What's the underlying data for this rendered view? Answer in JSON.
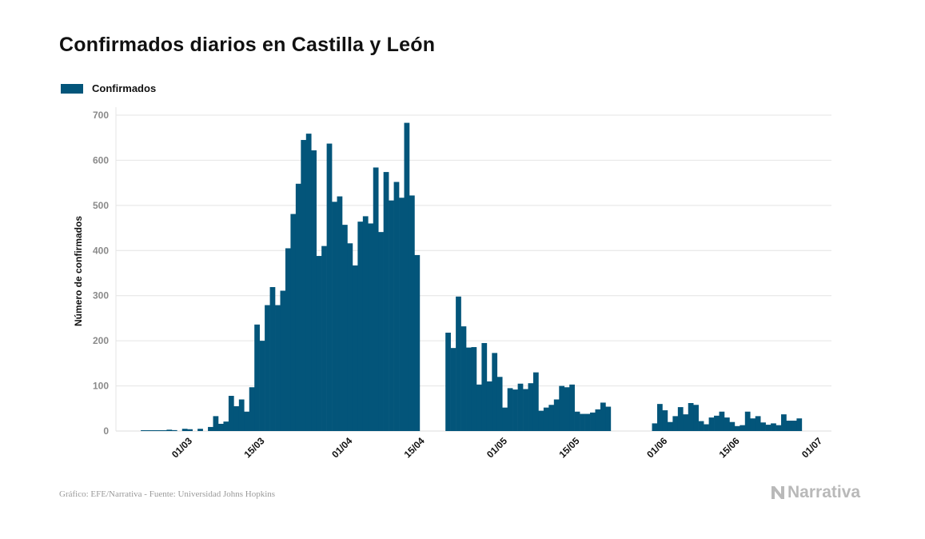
{
  "title": "Confirmados diarios en Castilla y León",
  "source": "Gráfico: EFE/Narrativa - Fuente: Universidad Johns Hopkins",
  "brand": "Narrativa",
  "colors": {
    "bar": "#03557a",
    "grid": "#e4e4e4"
  },
  "chart_data": {
    "type": "bar",
    "title": "Confirmados diarios en Castilla y León",
    "ylabel": "Número de confirmados",
    "xlabel": "",
    "ylim": [
      0,
      700
    ],
    "yticks": [
      0,
      100,
      200,
      300,
      400,
      500,
      600,
      700
    ],
    "xtick_labels": [
      "01/03",
      "15/03",
      "01/04",
      "15/04",
      "01/05",
      "15/05",
      "01/06",
      "15/06",
      "01/07"
    ],
    "legend": {
      "position": "top-left",
      "entries": [
        "Confirmados"
      ]
    },
    "grid": "horizontal",
    "series": [
      {
        "name": "Confirmados",
        "start_date": "2020-02-22",
        "values": [
          1,
          1,
          1,
          1,
          1,
          3,
          2,
          0,
          5,
          4,
          0,
          5,
          0,
          9,
          33,
          16,
          21,
          78,
          55,
          70,
          43,
          97,
          236,
          200,
          279,
          319,
          279,
          311,
          405,
          481,
          548,
          645,
          659,
          622,
          388,
          410,
          637,
          508,
          520,
          457,
          416,
          367,
          464,
          476,
          460,
          584,
          441,
          574,
          511,
          552,
          517,
          683,
          522,
          390,
          0,
          0,
          0,
          0,
          0,
          218,
          184,
          298,
          232,
          185,
          186,
          103,
          195,
          110,
          173,
          120,
          52,
          95,
          92,
          105,
          93,
          106,
          130,
          45,
          52,
          58,
          70,
          100,
          97,
          103,
          43,
          38,
          38,
          41,
          48,
          63,
          54,
          0,
          0,
          0,
          0,
          0,
          0,
          0,
          0,
          17,
          60,
          46,
          20,
          33,
          53,
          37,
          62,
          58,
          22,
          15,
          30,
          34,
          43,
          30,
          20,
          11,
          13,
          43,
          28,
          33,
          19,
          14,
          17,
          13,
          37,
          23,
          23,
          28
        ]
      }
    ]
  }
}
